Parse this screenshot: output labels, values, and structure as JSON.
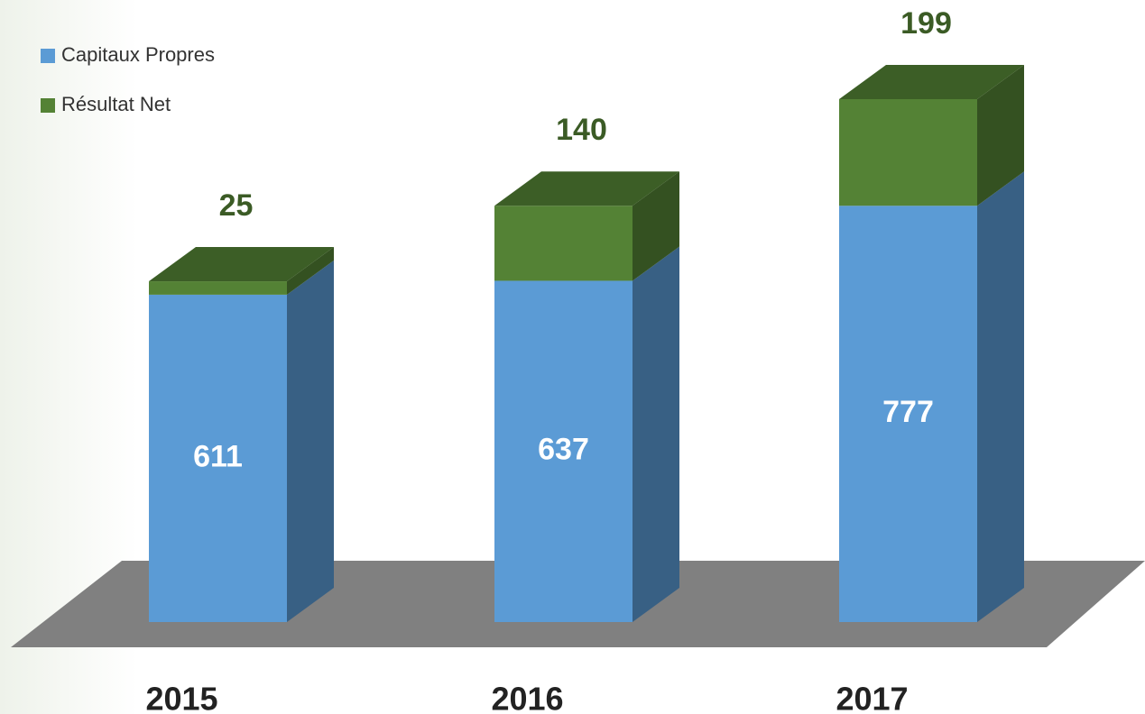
{
  "chart_data": {
    "type": "bar3d_stacked",
    "categories": [
      "2015",
      "2016",
      "2017"
    ],
    "series": [
      {
        "name": "Capitaux Propres",
        "color": "#5b9bd5",
        "values": [
          611,
          637,
          777
        ]
      },
      {
        "name": "Résultat Net",
        "color": "#548235",
        "values": [
          25,
          140,
          199
        ]
      }
    ],
    "legend": "top-left"
  }
}
